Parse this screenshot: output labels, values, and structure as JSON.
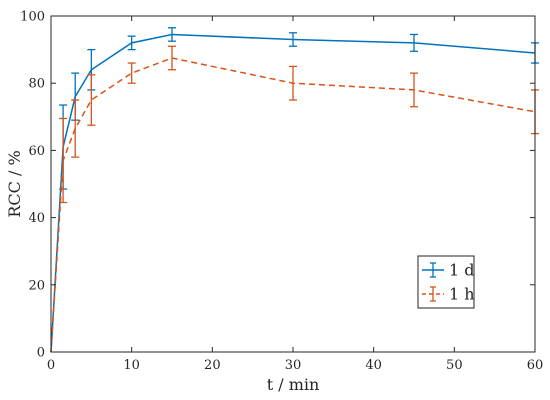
{
  "chart_data": {
    "type": "line",
    "title": "",
    "xlabel": "t / min",
    "ylabel": "RCC / %",
    "xlim": [
      0,
      60
    ],
    "ylim": [
      0,
      100
    ],
    "xticks": [
      0,
      10,
      20,
      30,
      40,
      50,
      60
    ],
    "yticks": [
      0,
      20,
      40,
      60,
      80,
      100
    ],
    "legend_position": "lower-right",
    "grid": false,
    "series": [
      {
        "name": "1 d",
        "color": "#0072BD",
        "line_style": "solid",
        "x": [
          0,
          1.5,
          3,
          5,
          10,
          15,
          30,
          45,
          60
        ],
        "y": [
          0,
          61,
          76,
          84,
          92,
          94.5,
          93,
          92,
          89
        ],
        "err": [
          0,
          12.5,
          7,
          6,
          2,
          2,
          2,
          2.5,
          3
        ]
      },
      {
        "name": "1 h",
        "color": "#D95319",
        "line_style": "dashed",
        "x": [
          0,
          1.5,
          3,
          5,
          10,
          15,
          30,
          45,
          60
        ],
        "y": [
          0,
          57,
          66.5,
          75,
          83,
          87.5,
          80,
          78,
          71.5
        ],
        "err": [
          0,
          12.5,
          8.5,
          7.5,
          3,
          3.5,
          5,
          5,
          6.5
        ]
      }
    ]
  }
}
